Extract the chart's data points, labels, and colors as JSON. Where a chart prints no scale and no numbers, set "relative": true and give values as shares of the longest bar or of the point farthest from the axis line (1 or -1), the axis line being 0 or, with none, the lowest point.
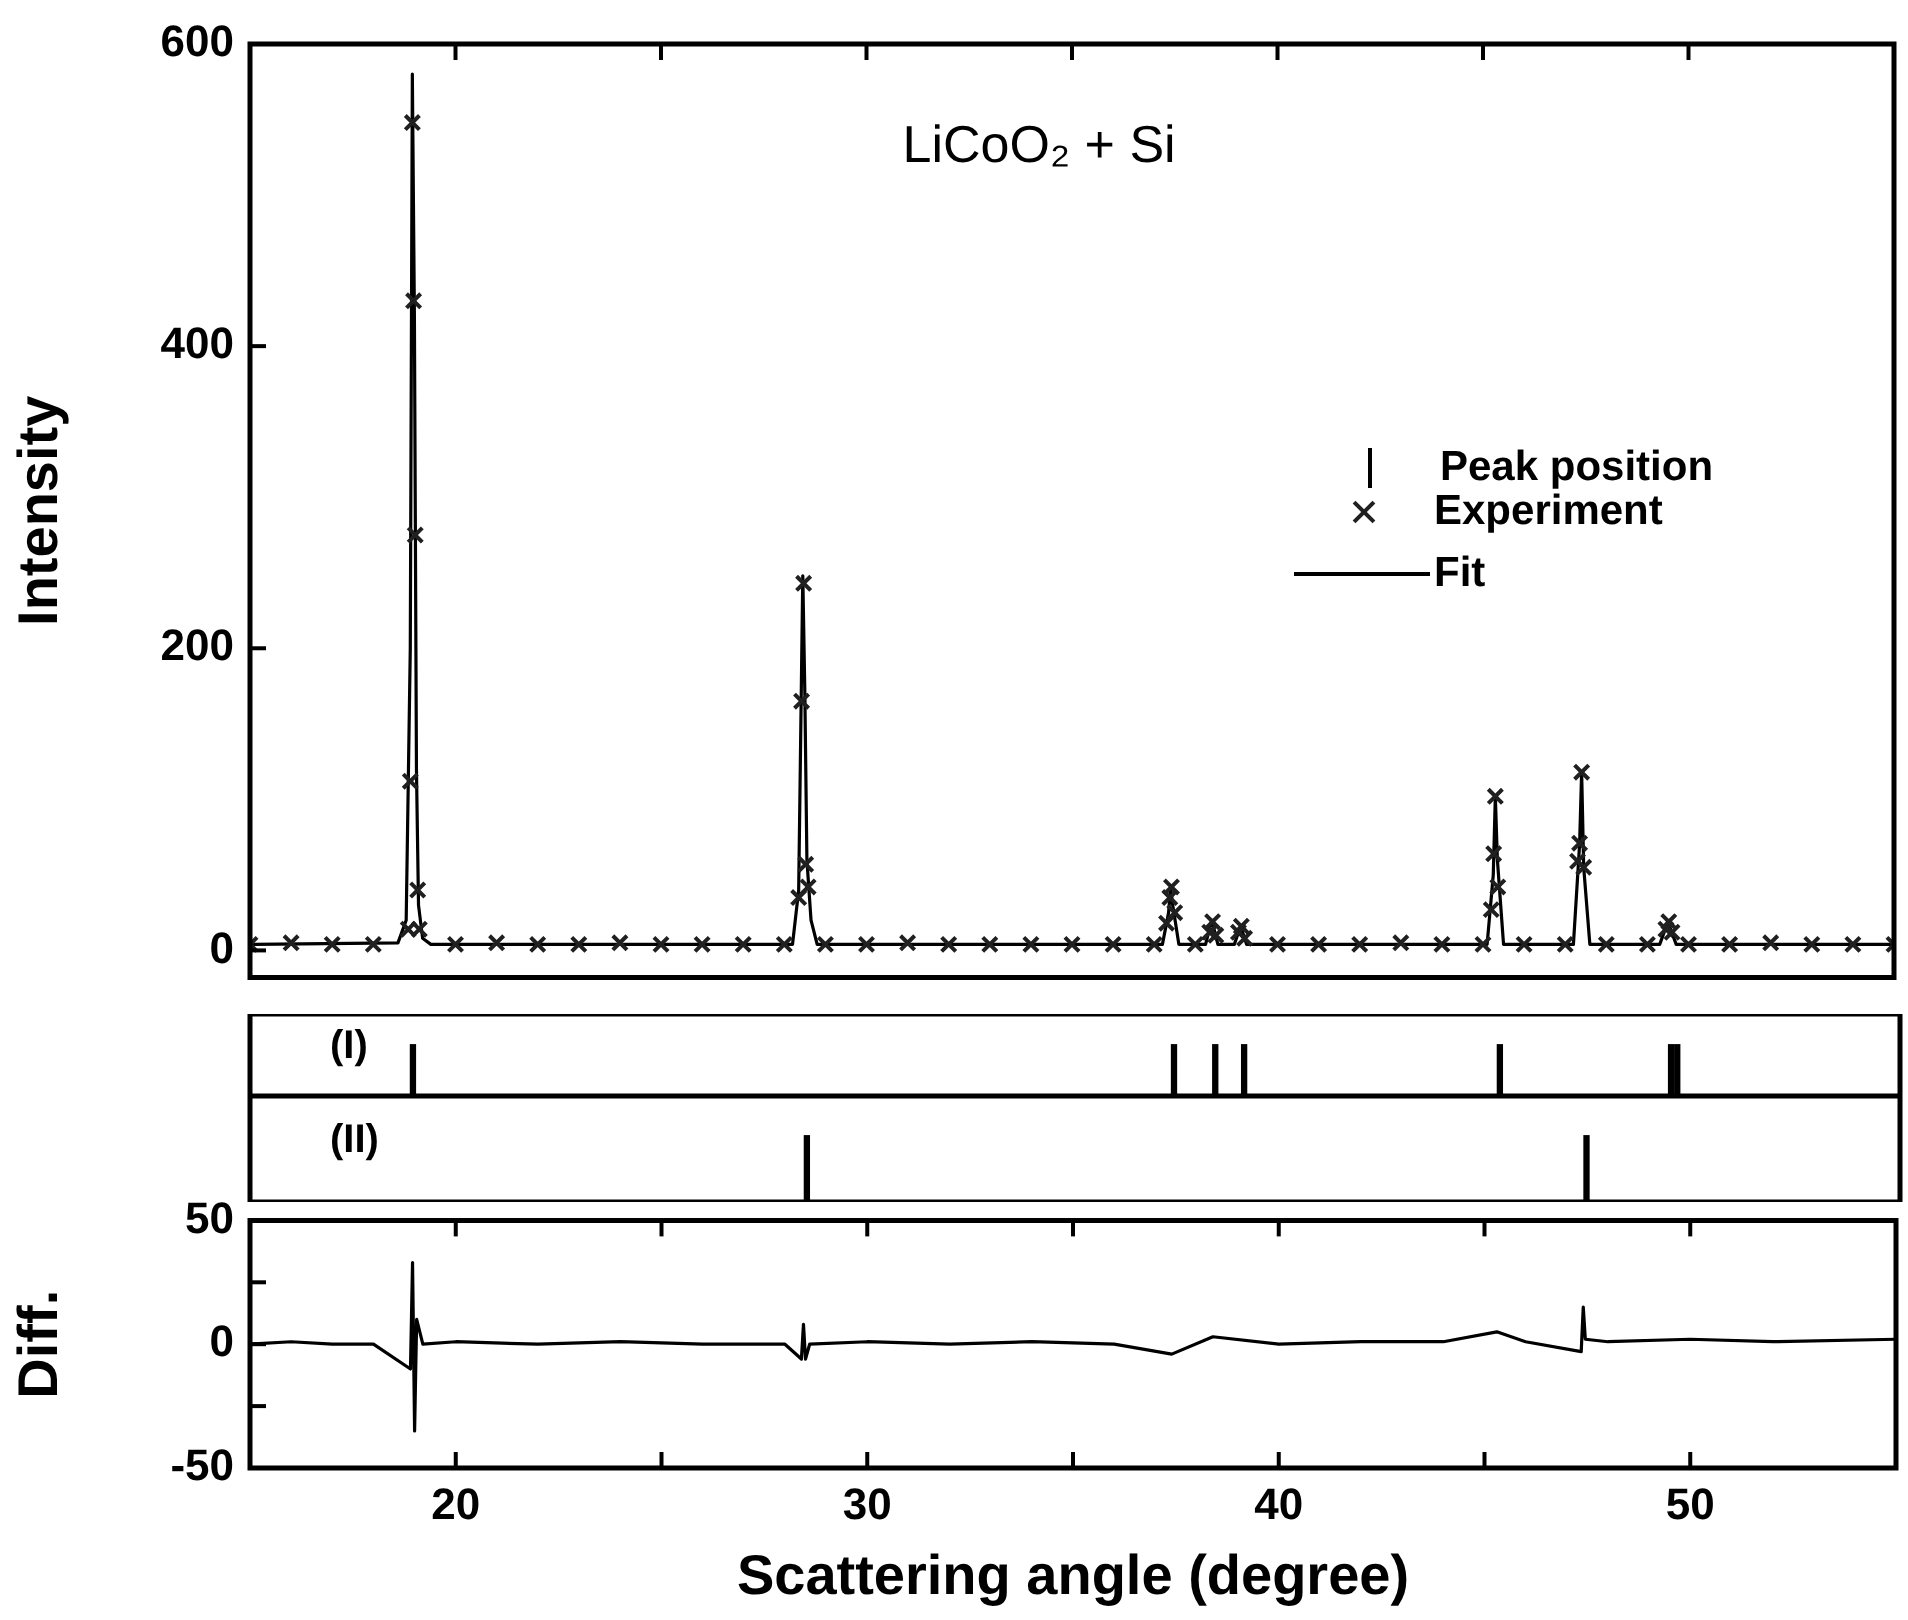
{
  "chart_data": [
    {
      "type": "line",
      "title": "LiCoO₂ + Si",
      "ylabel": "Intensity",
      "xlim": [
        15,
        55
      ],
      "xticks": [
        20,
        {
          "value": 25,
          "label": null
        },
        30,
        {
          "value": 35,
          "label": null
        },
        40,
        {
          "value": 45,
          "label": null
        },
        50,
        {
          "value": 55,
          "label": null
        }
      ],
      "ylim": [
        -18,
        600
      ],
      "yticks": [
        0,
        200,
        400,
        600
      ],
      "tick_labels": "y",
      "legend": "right",
      "line_style": "solid",
      "series": [
        {
          "name": "Experiment",
          "type": "scatter",
          "marker": "cross",
          "color": "#202020",
          "x": [
            15,
            16,
            17,
            18,
            18.85,
            18.9,
            18.95,
            18.98,
            19.02,
            19.08,
            19.12,
            20,
            21,
            22,
            23,
            24,
            25,
            26,
            27,
            28,
            28.35,
            28.42,
            28.47,
            28.52,
            28.58,
            29,
            30,
            31,
            32,
            33,
            34,
            35,
            36,
            37,
            37.3,
            37.38,
            37.42,
            37.5,
            38,
            38.35,
            38.42,
            38.5,
            39.05,
            39.12,
            39.2,
            40,
            41,
            42,
            43,
            44,
            45,
            45.2,
            45.26,
            45.3,
            45.36,
            46,
            47,
            47.3,
            47.35,
            47.4,
            47.45,
            48,
            49,
            49.45,
            49.52,
            49.6,
            50,
            51,
            52,
            53,
            54,
            55
          ],
          "values": [
            4,
            5,
            4,
            4,
            14,
            112,
            548,
            430,
            275,
            40,
            14,
            4,
            5,
            4,
            4,
            5,
            4,
            4,
            4,
            4,
            35,
            165,
            243,
            57,
            42,
            4,
            4,
            5,
            4,
            4,
            4,
            4,
            4,
            4,
            18,
            35,
            42,
            25,
            4,
            12,
            19,
            10,
            12,
            16,
            8,
            4,
            4,
            4,
            5,
            4,
            4,
            27,
            64,
            102,
            42,
            4,
            4,
            59,
            71,
            118,
            55,
            4,
            4,
            14,
            19,
            12,
            4,
            4,
            5,
            4,
            4,
            4
          ]
        },
        {
          "name": "Fit",
          "type": "line",
          "marker": "none",
          "color": "#000000",
          "x": [
            15,
            18.6,
            18.8,
            18.9,
            18.95,
            19.0,
            19.05,
            19.1,
            19.2,
            19.4,
            28.2,
            28.35,
            28.45,
            28.5,
            28.55,
            28.65,
            28.8,
            37.2,
            37.35,
            37.4,
            37.45,
            37.6,
            38.25,
            38.4,
            38.55,
            38.95,
            39.1,
            39.25,
            45.1,
            45.25,
            45.3,
            45.35,
            45.5,
            47.2,
            47.35,
            47.4,
            47.45,
            47.6,
            49.3,
            49.5,
            49.7,
            55
          ],
          "values": [
            4,
            5,
            20,
            200,
            580,
            420,
            120,
            30,
            8,
            4,
            4,
            40,
            248,
            170,
            60,
            20,
            4,
            4,
            25,
            42,
            30,
            4,
            4,
            20,
            4,
            4,
            16,
            4,
            4,
            50,
            102,
            60,
            4,
            4,
            70,
            118,
            55,
            4,
            4,
            19,
            4,
            4
          ]
        }
      ]
    },
    {
      "type": "bar",
      "relative": true,
      "xlim": [
        15,
        55
      ],
      "tick_labels": false,
      "annotations": [
        "(I)"
      ],
      "legend": "top right",
      "series": [
        {
          "name": "Peak position",
          "color": "#000000",
          "x": [
            18.95,
            37.4,
            38.4,
            39.1,
            45.3,
            49.45,
            49.6
          ],
          "values": [
            1,
            1,
            1,
            1,
            1,
            1,
            1
          ]
        }
      ]
    },
    {
      "type": "bar",
      "relative": true,
      "xlim": [
        15,
        55
      ],
      "tick_labels": false,
      "annotations": [
        "(II)"
      ],
      "series": [
        {
          "color": "#000000",
          "x": [
            28.5,
            47.4
          ],
          "values": [
            1,
            1
          ]
        }
      ]
    },
    {
      "type": "line",
      "ylabel": "Diff.",
      "xlabel": "Scattering angle (degree)",
      "xlim": [
        15,
        55
      ],
      "xticks": [
        20,
        {
          "value": 25,
          "label": null
        },
        30,
        {
          "value": 35,
          "label": null
        },
        40,
        {
          "value": 45,
          "label": null
        },
        50,
        {
          "value": 55,
          "label": null
        }
      ],
      "ylim": [
        -50,
        50
      ],
      "yticks": [
        -50,
        {
          "value": -25,
          "label": null
        },
        0,
        {
          "value": 25,
          "label": null
        },
        50
      ],
      "series": [
        {
          "color": "#000000",
          "x": [
            15,
            16,
            17,
            18,
            18.9,
            18.95,
            19.0,
            19.05,
            19.2,
            20,
            22,
            24,
            26,
            28,
            28.4,
            28.45,
            28.5,
            28.6,
            30,
            32,
            34,
            36,
            37.4,
            38.4,
            40,
            42,
            44,
            45.3,
            46,
            47.35,
            47.4,
            47.45,
            48,
            50,
            52,
            55
          ],
          "values": [
            0,
            1,
            0,
            0,
            -10,
            33,
            -35,
            10,
            0,
            1,
            0,
            1,
            0,
            0,
            -6,
            8,
            -6,
            0,
            1,
            0,
            1,
            0,
            -4,
            3,
            0,
            1,
            1,
            5,
            1,
            -3,
            15,
            2,
            1,
            2,
            1,
            2
          ]
        }
      ]
    }
  ]
}
